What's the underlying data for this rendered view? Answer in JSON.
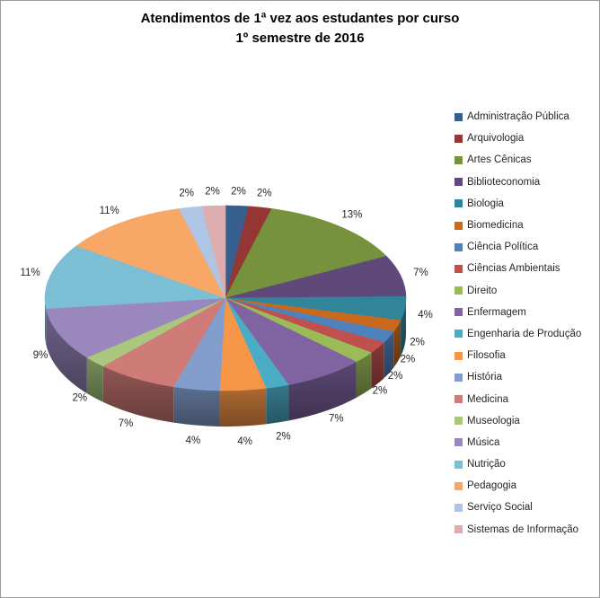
{
  "frame": {
    "background": "#FFFFFF",
    "border_color": "#9B9B9B"
  },
  "chart_data": {
    "type": "pie",
    "style": "3d-pie",
    "title_line1": "Atendimentos de 1ª vez aos estudantes por curso",
    "title_line2": "1º semestre de 2016",
    "legend_position": "right",
    "data_labels": "percent-outside",
    "slices": [
      {
        "label": "Administração Pública",
        "value": 2,
        "percent_label": "2%",
        "color": "#365F8F"
      },
      {
        "label": "Arquivologia",
        "value": 2,
        "percent_label": "2%",
        "color": "#943634"
      },
      {
        "label": "Artes Cênicas",
        "value": 13,
        "percent_label": "13%",
        "color": "#76923C"
      },
      {
        "label": "Biblioteconomia",
        "value": 7,
        "percent_label": "7%",
        "color": "#5F497A"
      },
      {
        "label": "Biologia",
        "value": 4,
        "percent_label": "4%",
        "color": "#31859B"
      },
      {
        "label": "Biomedicina",
        "value": 2,
        "percent_label": "2%",
        "color": "#C9691D"
      },
      {
        "label": "Ciência Política",
        "value": 2,
        "percent_label": "2%",
        "color": "#4F81BD"
      },
      {
        "label": "Ciências Ambientais",
        "value": 2,
        "percent_label": "2%",
        "color": "#C0504D"
      },
      {
        "label": "Direito",
        "value": 2,
        "percent_label": "2%",
        "color": "#9BBB59"
      },
      {
        "label": "Enfermagem",
        "value": 7,
        "percent_label": "7%",
        "color": "#8064A2"
      },
      {
        "label": "Engenharia de Produção",
        "value": 2,
        "percent_label": "2%",
        "color": "#4BACC6"
      },
      {
        "label": "Filosofia",
        "value": 4,
        "percent_label": "4%",
        "color": "#F79646"
      },
      {
        "label": "História",
        "value": 4,
        "percent_label": "4%",
        "color": "#839ECD"
      },
      {
        "label": "Medicina",
        "value": 7,
        "percent_label": "7%",
        "color": "#CF7B78"
      },
      {
        "label": "Museologia",
        "value": 2,
        "percent_label": "2%",
        "color": "#A9C87E"
      },
      {
        "label": "Música",
        "value": 9,
        "percent_label": "9%",
        "color": "#9A87BE"
      },
      {
        "label": "Nutrição",
        "value": 11,
        "percent_label": "11%",
        "color": "#7CBFD4"
      },
      {
        "label": "Pedagogia",
        "value": 11,
        "percent_label": "11%",
        "color": "#F7A766"
      },
      {
        "label": "Serviço Social",
        "value": 2,
        "percent_label": "2%",
        "color": "#AFC5E6"
      },
      {
        "label": "Sistemas de Informação",
        "value": 2,
        "percent_label": "2%",
        "color": "#DCACAE"
      }
    ]
  }
}
